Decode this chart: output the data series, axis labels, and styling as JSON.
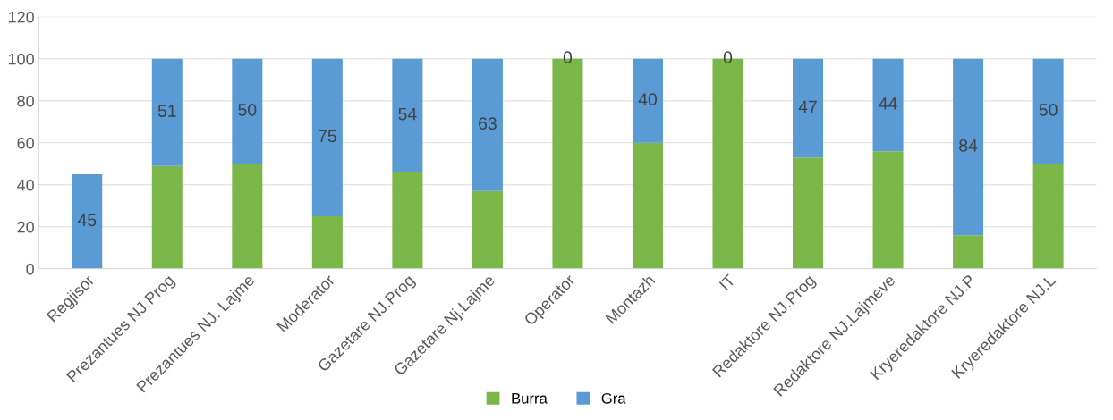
{
  "chart_data": {
    "type": "bar",
    "stacked": true,
    "categories": [
      "Regjisor",
      "Prezantues NJ.Prog",
      "Prezantues NJ. Lajme",
      "Moderator",
      "Gazetare NJ.Prog",
      "Gazetare Nj.Lajme",
      "Operator",
      "Montazh",
      "IT",
      "Redaktore NJ.Prog",
      "Redaktore NJ.Lajmeve",
      "Kryeredaktore NJ.P",
      "Kryeredaktore NJ.L"
    ],
    "series": [
      {
        "name": "Burra",
        "color": "#7ab648",
        "values": [
          0,
          49,
          50,
          25,
          46,
          37,
          100,
          60,
          100,
          53,
          56,
          16,
          50
        ]
      },
      {
        "name": "Gra",
        "color": "#5b9bd5",
        "values": [
          45,
          51,
          50,
          75,
          54,
          63,
          0,
          40,
          0,
          47,
          44,
          84,
          50
        ],
        "value_labels": [
          "45",
          "51",
          "50",
          "75",
          "54",
          "63",
          "0",
          "40",
          "0",
          "47",
          "44",
          "84",
          "50"
        ]
      }
    ],
    "ylim": [
      0,
      120
    ],
    "yticks": [
      0,
      20,
      40,
      60,
      80,
      100,
      120
    ],
    "grid": "y",
    "legend": "bottom"
  }
}
